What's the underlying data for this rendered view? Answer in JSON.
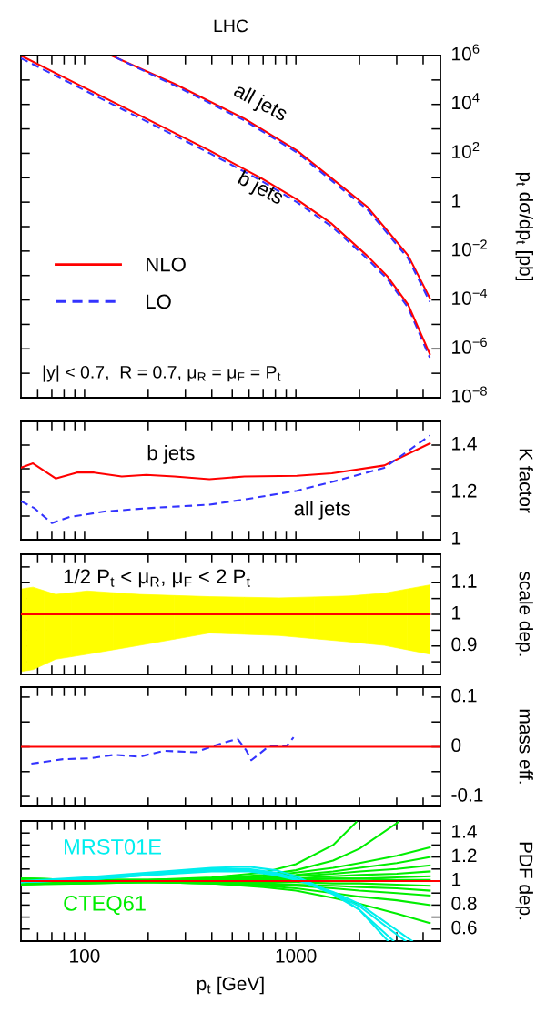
{
  "chart_data": [
    {
      "type": "line",
      "title": "LHC",
      "ylabel": "p$_{t}$ dσ/dp$_{t}$ [pb]",
      "log": "xy",
      "xlim": [
        50,
        4830
      ],
      "ylim": [
        1e-08,
        1000000.0
      ],
      "tick_labels": "y",
      "legend": "left",
      "xticks": [
        {
          "value": 60,
          "label": null
        },
        {
          "value": 70,
          "label": null
        },
        {
          "value": 80,
          "label": null
        },
        {
          "value": 90,
          "label": null
        },
        100,
        {
          "value": 200,
          "label": null
        },
        {
          "value": 300,
          "label": null
        },
        {
          "value": 400,
          "label": null
        },
        {
          "value": 500,
          "label": null
        },
        {
          "value": 600,
          "label": null
        },
        {
          "value": 700,
          "label": null
        },
        {
          "value": 800,
          "label": null
        },
        {
          "value": 900,
          "label": null
        },
        1000,
        {
          "value": 2000,
          "label": null
        },
        {
          "value": 3000,
          "label": null
        },
        {
          "value": 4000,
          "label": null
        }
      ],
      "yticks": [
        {
          "value": 1000000.0,
          "label": "10$^{6}$"
        },
        {
          "value": 100000.0,
          "label": null
        },
        {
          "value": 10000.0,
          "label": "10$^{4}$"
        },
        {
          "value": 1000.0,
          "label": null
        },
        {
          "value": 100,
          "label": "10$^{2}$"
        },
        {
          "value": 10,
          "label": null
        },
        1,
        {
          "value": 0.1,
          "label": null
        },
        {
          "value": 0.01,
          "label": "10$^{−2}$"
        },
        {
          "value": 0.001,
          "label": null
        },
        {
          "value": 0.0001,
          "label": "10$^{−4}$"
        },
        {
          "value": 1e-05,
          "label": null
        },
        {
          "value": 1e-06,
          "label": "10$^{−6}$"
        },
        {
          "value": 1e-07,
          "label": null
        },
        {
          "value": 1e-08,
          "label": "10$^{−8}$"
        }
      ],
      "series": [
        {
          "name": "NLO",
          "type": "line",
          "color": "#ff0000",
          "line_style": "solid",
          "x": [
            134,
            266,
            571,
            1011,
            1480,
            2170,
            2720,
            3400,
            4300
          ],
          "values": [
            1000000.0,
            70000.0,
            2600,
            130,
            9.3,
            0.66,
            0.066,
            0.0065,
            0.00012
          ]
        },
        {
          "name": "LO",
          "type": "line",
          "color": "#3333ff",
          "line_style": "dashed",
          "x": [
            140,
            266,
            571,
            1011,
            1480,
            2170,
            2720,
            3400,
            4300
          ],
          "values": [
            850000.0,
            60000.0,
            2200,
            108,
            7.5,
            0.52,
            0.051,
            0.0049,
            8.5e-05
          ]
        },
        {
          "type": "line",
          "color": "#3333ff",
          "line_style": "dashed",
          "x": [
            50,
            85,
            182,
            390,
            690,
            1011,
            1480,
            2170,
            2720,
            3400,
            4300
          ],
          "values": [
            780000.0,
            77000.0,
            2800,
            102,
            7.3,
            1.0,
            0.1,
            0.005,
            0.00069,
            4.8e-05,
            4.4e-07
          ]
        },
        {
          "type": "line",
          "color": "#ff0000",
          "line_style": "solid",
          "x": [
            50,
            85,
            182,
            390,
            690,
            1011,
            1480,
            2170,
            2720,
            3400,
            4300
          ],
          "values": [
            1000000.0,
            98000.0,
            3600,
            130,
            9.3,
            1.3,
            0.13,
            0.0065,
            0.00089,
            6.3e-05,
            6.2e-07
          ]
        }
      ],
      "annotations": [
        "all jets",
        "b jets",
        "|y| < 0.7,  R = 0.7, μ$_{R}$ = μ$_{F}$ = P$_{t}$"
      ]
    },
    {
      "type": "line",
      "ylabel": "K factor",
      "log": "x",
      "xlim": [
        50,
        4830
      ],
      "ylim": [
        1,
        1.5
      ],
      "tick_labels": "y",
      "xticks": [
        {
          "value": 60,
          "label": null
        },
        {
          "value": 70,
          "label": null
        },
        {
          "value": 80,
          "label": null
        },
        {
          "value": 90,
          "label": null
        },
        100,
        {
          "value": 200,
          "label": null
        },
        {
          "value": 300,
          "label": null
        },
        {
          "value": 400,
          "label": null
        },
        {
          "value": 500,
          "label": null
        },
        {
          "value": 600,
          "label": null
        },
        {
          "value": 700,
          "label": null
        },
        {
          "value": 800,
          "label": null
        },
        {
          "value": 900,
          "label": null
        },
        1000,
        {
          "value": 2000,
          "label": null
        },
        {
          "value": 3000,
          "label": null
        },
        {
          "value": 4000,
          "label": null
        }
      ],
      "yticks": [
        1,
        {
          "value": 1.1,
          "label": null
        },
        1.2,
        {
          "value": 1.3,
          "label": null
        },
        1.4
      ],
      "series": [
        {
          "type": "line",
          "color": "#ff0000",
          "line_style": "solid",
          "x": [
            50,
            57,
            73,
            92,
            111,
            150,
            196,
            266,
            390,
            571,
            1011,
            1480,
            2620,
            4300
          ],
          "values": [
            1.304,
            1.323,
            1.259,
            1.284,
            1.284,
            1.267,
            1.274,
            1.267,
            1.256,
            1.267,
            1.27,
            1.281,
            1.314,
            1.407
          ]
        },
        {
          "type": "line",
          "color": "#3333ff",
          "line_style": "dashed",
          "x": [
            50,
            58,
            70,
            85,
            124,
            196,
            390,
            571,
            1011,
            1480,
            2620,
            4300
          ],
          "values": [
            1.163,
            1.133,
            1.07,
            1.096,
            1.119,
            1.133,
            1.148,
            1.17,
            1.207,
            1.244,
            1.304,
            1.44
          ]
        }
      ],
      "annotations": [
        "b jets",
        "all jets"
      ]
    },
    {
      "type": "line",
      "ylabel": "scale dep.",
      "log": "x",
      "xlim": [
        50,
        4830
      ],
      "ylim": [
        0.81,
        1.19
      ],
      "tick_labels": "y",
      "xticks": [
        {
          "value": 60,
          "label": null
        },
        {
          "value": 70,
          "label": null
        },
        {
          "value": 80,
          "label": null
        },
        {
          "value": 90,
          "label": null
        },
        100,
        {
          "value": 200,
          "label": null
        },
        {
          "value": 300,
          "label": null
        },
        {
          "value": 400,
          "label": null
        },
        {
          "value": 500,
          "label": null
        },
        {
          "value": 600,
          "label": null
        },
        {
          "value": 700,
          "label": null
        },
        {
          "value": 800,
          "label": null
        },
        {
          "value": 900,
          "label": null
        },
        1000,
        {
          "value": 2000,
          "label": null
        },
        {
          "value": 3000,
          "label": null
        },
        {
          "value": 4000,
          "label": null
        }
      ],
      "yticks": [
        {
          "value": 0.85,
          "label": null
        },
        0.9,
        {
          "value": 0.95,
          "label": null
        },
        1,
        {
          "value": 1.05,
          "label": null
        },
        1.1,
        {
          "value": 1.15,
          "label": null
        }
      ],
      "series": [
        {
          "color": "#ff0000",
          "colors": [
            "#ffff00",
            "#ffff00",
            "#ffff00",
            "#ffff00",
            "#ffff00",
            "#ffff00",
            "#ffff00",
            "#ffff00",
            "#ffff00",
            "#ffff00"
          ],
          "x": [
            50,
            57,
            73,
            103,
            182,
            390,
            834,
            1790,
            2620,
            4300
          ],
          "values": [
            1,
            1,
            1,
            1,
            1,
            1,
            1,
            1,
            1,
            1
          ],
          "upper": [
            1.08,
            1.086,
            1.063,
            1.074,
            1.063,
            1.056,
            1.052,
            1.058,
            1.067,
            1.093
          ],
          "lower": [
            0.819,
            0.825,
            0.858,
            0.874,
            0.902,
            0.941,
            0.933,
            0.913,
            0.902,
            0.874
          ]
        }
      ],
      "annotations": [
        "1/2 P$_{t}$ < μ$_{R}$, μ$_{F}$ < 2 P$_{t}$"
      ]
    },
    {
      "type": "line",
      "ylabel": "mass eff.",
      "log": "x",
      "xlim": [
        50,
        4830
      ],
      "ylim": [
        -0.12,
        0.12
      ],
      "tick_labels": "y",
      "xticks": [
        {
          "value": 60,
          "label": null
        },
        {
          "value": 70,
          "label": null
        },
        {
          "value": 80,
          "label": null
        },
        {
          "value": 90,
          "label": null
        },
        100,
        {
          "value": 200,
          "label": null
        },
        {
          "value": 300,
          "label": null
        },
        {
          "value": 400,
          "label": null
        },
        {
          "value": 500,
          "label": null
        },
        {
          "value": 600,
          "label": null
        },
        {
          "value": 700,
          "label": null
        },
        {
          "value": 800,
          "label": null
        },
        {
          "value": 900,
          "label": null
        },
        1000,
        {
          "value": 2000,
          "label": null
        },
        {
          "value": 3000,
          "label": null
        },
        {
          "value": 4000,
          "label": null
        }
      ],
      "yticks": [
        -0.1,
        {
          "value": -0.05,
          "label": null
        },
        0,
        {
          "value": 0.05,
          "label": null
        },
        0.1
      ],
      "series": [
        {
          "type": "line",
          "color": "#3333ff",
          "line_style": "dashed",
          "x": [
            56,
            79,
            107,
            139,
            182,
            237,
            335,
            390,
            454,
            530,
            580,
            615,
            745,
            902,
            975
          ],
          "values": [
            -0.034,
            -0.025,
            -0.023,
            -0.016,
            -0.02,
            -0.008,
            -0.011,
            -0.001,
            0.008,
            0.016,
            -0.006,
            -0.027,
            0.001,
            0.001,
            0.019
          ]
        }
      ],
      "ref_lines": [
        {
          "axis": "y",
          "value": 0,
          "color": "#ff0000"
        }
      ]
    },
    {
      "type": "line",
      "ylabel": "PDF dep.",
      "xlabel": "p$_{t}$ [GeV]",
      "log": "x",
      "xlim": [
        50,
        4830
      ],
      "ylim": [
        0.5,
        1.5
      ],
      "xticks": [
        {
          "value": 60,
          "label": null
        },
        {
          "value": 70,
          "label": null
        },
        {
          "value": 80,
          "label": null
        },
        {
          "value": 90,
          "label": null
        },
        100,
        {
          "value": 200,
          "label": null
        },
        {
          "value": 300,
          "label": null
        },
        {
          "value": 400,
          "label": null
        },
        {
          "value": 500,
          "label": null
        },
        {
          "value": 600,
          "label": null
        },
        {
          "value": 700,
          "label": null
        },
        {
          "value": 800,
          "label": null
        },
        {
          "value": 900,
          "label": null
        },
        1000,
        {
          "value": 2000,
          "label": null
        },
        {
          "value": 3000,
          "label": null
        },
        {
          "value": 4000,
          "label": null
        }
      ],
      "yticks": [
        0.6,
        {
          "value": 0.7,
          "label": null
        },
        0.8,
        {
          "value": 0.9,
          "label": null
        },
        1,
        {
          "value": 1.1,
          "label": null
        },
        1.2,
        {
          "value": 1.3,
          "label": null
        },
        1.4
      ],
      "x": [
        50,
        100,
        200,
        400,
        700,
        1000,
        1500,
        2000,
        3000,
        4300
      ],
      "series": [
        {
          "name": "CTEQ61",
          "type": "line",
          "color": "#00ee00",
          "x": [
            50,
            100,
            200,
            400,
            700,
            1000,
            1500,
            1930
          ],
          "values": [
            1.02,
            1.01,
            1.01,
            1.03,
            1.07,
            1.14,
            1.3,
            1.49
          ]
        },
        {
          "type": "line",
          "color": "#00ee00",
          "x": [
            50,
            100,
            200,
            400,
            700,
            1000,
            1500,
            2000,
            3050
          ],
          "values": [
            1.02,
            1.01,
            1.01,
            1.02,
            1.05,
            1.09,
            1.17,
            1.27,
            1.49
          ]
        },
        {
          "type": "line",
          "color": "#00ee00",
          "values": [
            1.02,
            1.01,
            1.01,
            1.02,
            1.04,
            1.07,
            1.11,
            1.15,
            1.21,
            1.28
          ]
        },
        {
          "type": "line",
          "color": "#00ee00",
          "values": [
            1.01,
            1.01,
            1.01,
            1.01,
            1.03,
            1.05,
            1.08,
            1.11,
            1.15,
            1.2
          ]
        },
        {
          "type": "line",
          "color": "#00ee00",
          "values": [
            1.02,
            1.01,
            1.0,
            1.01,
            1.02,
            1.04,
            1.06,
            1.08,
            1.1,
            1.13
          ]
        },
        {
          "type": "line",
          "color": "#00ee00",
          "values": [
            1.01,
            1.0,
            1.0,
            1.01,
            1.01,
            1.02,
            1.04,
            1.05,
            1.06,
            1.08
          ]
        },
        {
          "type": "line",
          "color": "#00ee00",
          "values": [
            1.0,
            1.0,
            1.0,
            1.0,
            1.01,
            1.01,
            1.02,
            1.02,
            1.03,
            1.04
          ]
        },
        {
          "type": "line",
          "color": "#00ee00",
          "values": [
            0.98,
            0.98,
            0.99,
            1.01,
            1.02,
            1.02,
            1.02,
            1.02,
            1.01,
            1.01
          ]
        },
        {
          "type": "line",
          "color": "#00ee00",
          "values": [
            0.98,
            0.99,
            1.0,
            0.99,
            0.99,
            0.99,
            0.98,
            0.98,
            0.97,
            0.96
          ]
        },
        {
          "type": "line",
          "color": "#00ee00",
          "values": [
            0.97,
            0.99,
            0.99,
            0.99,
            0.98,
            0.97,
            0.96,
            0.95,
            0.94,
            0.92
          ]
        },
        {
          "type": "line",
          "color": "#00ee00",
          "values": [
            0.97,
            0.98,
            0.99,
            0.98,
            0.97,
            0.96,
            0.94,
            0.92,
            0.9,
            0.88
          ]
        },
        {
          "type": "line",
          "color": "#00ee00",
          "values": [
            0.98,
            0.99,
            0.99,
            0.98,
            0.96,
            0.94,
            0.9,
            0.87,
            0.84,
            0.8
          ]
        },
        {
          "type": "line",
          "color": "#00ee00",
          "values": [
            0.99,
            0.99,
            0.99,
            0.98,
            0.95,
            0.92,
            0.86,
            0.81,
            0.73,
            0.65
          ]
        },
        {
          "name": "MRST01E",
          "type": "line",
          "color": "#00eeee",
          "x": [
            50,
            100,
            200,
            400,
            600,
            800,
            1000,
            1500,
            2000,
            2730
          ],
          "values": [
            1.0,
            1.03,
            1.07,
            1.11,
            1.12,
            1.09,
            1.04,
            0.9,
            0.76,
            0.5
          ]
        },
        {
          "type": "line",
          "color": "#00eeee",
          "x": [
            50,
            100,
            200,
            400,
            600,
            800,
            1000,
            1500,
            2000,
            2900
          ],
          "values": [
            0.99,
            1.02,
            1.06,
            1.1,
            1.1,
            1.07,
            1.02,
            0.89,
            0.76,
            0.5
          ]
        },
        {
          "type": "line",
          "color": "#00eeee",
          "x": [
            50,
            100,
            200,
            400,
            600,
            800,
            1000,
            1500,
            2000,
            3300
          ],
          "values": [
            0.99,
            1.01,
            1.05,
            1.09,
            1.09,
            1.06,
            1.02,
            0.9,
            0.79,
            0.5
          ]
        },
        {
          "type": "line",
          "color": "#00eeee",
          "x": [
            50,
            100,
            200,
            400,
            600,
            800,
            1000,
            1500,
            2000,
            3550
          ],
          "values": [
            0.99,
            1.01,
            1.05,
            1.08,
            1.08,
            1.05,
            1.01,
            0.91,
            0.81,
            0.5
          ]
        }
      ],
      "ref_lines": [
        {
          "axis": "y",
          "value": 1,
          "color": "#ff0000"
        }
      ]
    }
  ]
}
